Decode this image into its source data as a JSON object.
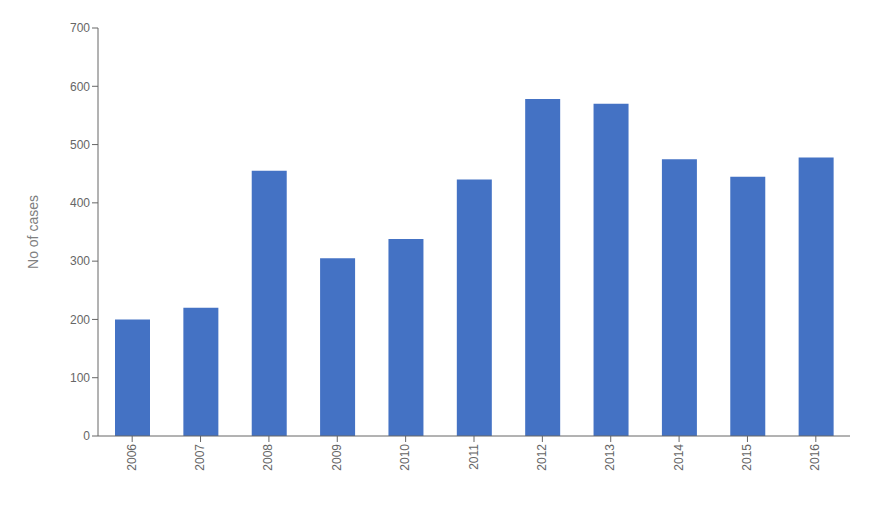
{
  "chart_data": {
    "type": "bar",
    "ylabel": "No of cases",
    "categories": [
      "2006",
      "2007",
      "2008",
      "2009",
      "2010",
      "2011",
      "2012",
      "2013",
      "2014",
      "2015",
      "2016"
    ],
    "values": [
      200,
      220,
      455,
      305,
      338,
      440,
      578,
      570,
      475,
      445,
      478
    ],
    "color": "#4472C4",
    "ylim": [
      0,
      700
    ],
    "yticks": [
      0,
      100,
      200,
      300,
      400,
      500,
      600,
      700
    ],
    "grid": false
  }
}
